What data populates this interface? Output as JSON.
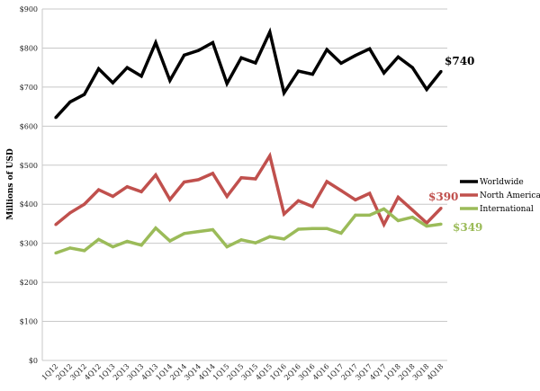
{
  "chart_data": {
    "type": "line",
    "ylabel": "Millions of USD",
    "ylim": [
      0,
      900
    ],
    "yticks": [
      0,
      100,
      200,
      300,
      400,
      500,
      600,
      700,
      800,
      900
    ],
    "ytick_labels": [
      "$0",
      "$100",
      "$200",
      "$300",
      "$400",
      "$500",
      "$600",
      "$700",
      "$800",
      "$900"
    ],
    "grid": true,
    "legend_position": "right",
    "categories": [
      "1Q12",
      "2Q12",
      "3Q12",
      "4Q12",
      "1Q13",
      "2Q13",
      "3Q13",
      "4Q13",
      "1Q14",
      "2Q14",
      "3Q14",
      "4Q14",
      "1Q15",
      "2Q15",
      "3Q15",
      "4Q15",
      "1Q16",
      "2Q16",
      "3Q16",
      "4Q16",
      "1Q17",
      "2Q17",
      "3Q17",
      "4Q17",
      "1Q18",
      "2Q18",
      "3Q18",
      "4Q18"
    ],
    "series": [
      {
        "name": "Worldwide",
        "color": "#000000",
        "end_label": "$740",
        "values": [
          622,
          662,
          681,
          747,
          711,
          750,
          728,
          814,
          717,
          782,
          794,
          814,
          709,
          775,
          762,
          841,
          685,
          741,
          733,
          796,
          761,
          781,
          798,
          736,
          777,
          750,
          694,
          740
        ]
      },
      {
        "name": "North America",
        "color": "#c0504d",
        "end_label": "$390",
        "values": [
          348,
          378,
          400,
          437,
          420,
          445,
          432,
          475,
          412,
          457,
          463,
          479,
          420,
          468,
          465,
          524,
          375,
          409,
          394,
          458,
          435,
          411,
          428,
          348,
          418,
          385,
          352,
          390
        ]
      },
      {
        "name": "International",
        "color": "#9bbb59",
        "end_label": "$349",
        "values": [
          275,
          288,
          281,
          310,
          291,
          305,
          295,
          339,
          306,
          325,
          330,
          335,
          291,
          309,
          301,
          317,
          311,
          336,
          338,
          338,
          326,
          372,
          372,
          388,
          358,
          367,
          344,
          349
        ]
      }
    ]
  }
}
